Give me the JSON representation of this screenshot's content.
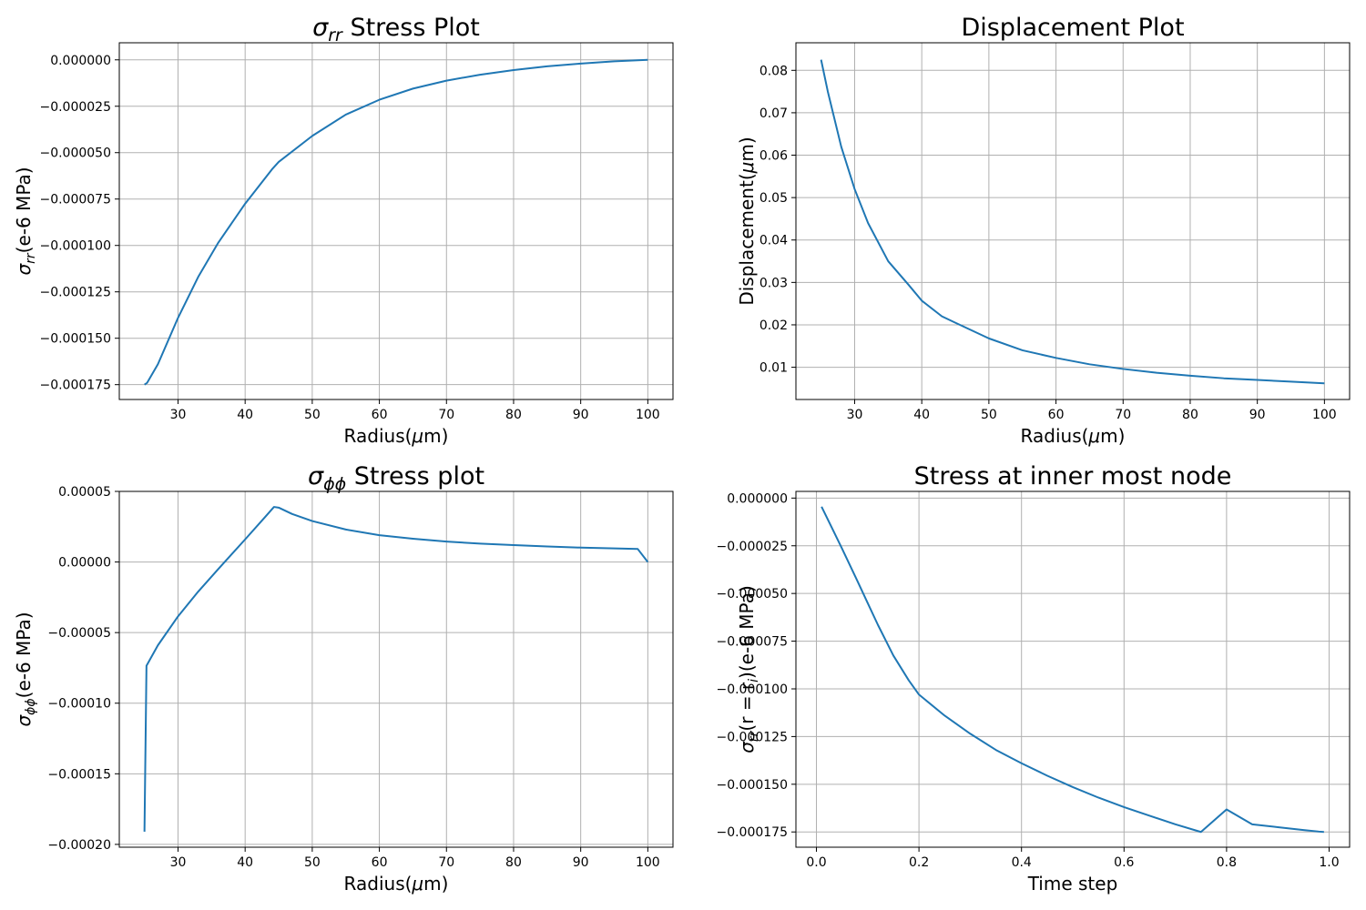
{
  "chart_data": [
    {
      "type": "line",
      "title": "σrr Stress Plot",
      "title_parts": {
        "sym": "σ",
        "sub": "rr",
        "rest": " Stress Plot"
      },
      "xlabel": "Radius(μm)",
      "xlabel_parts": {
        "pre": "Radius(",
        "sym": "μ",
        "sub": "",
        "post": "m)"
      },
      "ylabel": "σrr(e-6 MPa)",
      "ylabel_parts": {
        "pre": "",
        "sym": "σ",
        "sub": "rr",
        "post": "(e-6 MPa)"
      },
      "xlim": [
        21.25,
        103.75
      ],
      "ylim": [
        -0.000183,
        9.2e-06
      ],
      "xticks": [
        30,
        40,
        50,
        60,
        70,
        80,
        90,
        100
      ],
      "xtick_labels": [
        "30",
        "40",
        "50",
        "60",
        "70",
        "80",
        "90",
        "100"
      ],
      "yticks": [
        0,
        -2.5e-05,
        -5e-05,
        -7.5e-05,
        -0.0001,
        -0.000125,
        -0.00015,
        -0.000175
      ],
      "ytick_labels": [
        "0.000000",
        "−0.000025",
        "−0.000050",
        "−0.000075",
        "−0.000100",
        "−0.000125",
        "−0.000150",
        "−0.000175"
      ],
      "grid": true,
      "color": "#1f77b4",
      "x": [
        25,
        25.4,
        27,
        30,
        33,
        36,
        40,
        44,
        45,
        50,
        55,
        60,
        65,
        70,
        75,
        80,
        85,
        90,
        95,
        100
      ],
      "y": [
        -0.000175,
        -0.000174,
        -0.000164,
        -0.000139,
        -0.000117,
        -9.85e-05,
        -7.75e-05,
        -5.9e-05,
        -5.5e-05,
        -4.1e-05,
        -2.95e-05,
        -2.15e-05,
        -1.55e-05,
        -1.12e-05,
        -8e-06,
        -5.5e-06,
        -3.5e-06,
        -2e-06,
        -8e-07,
        0
      ]
    },
    {
      "type": "line",
      "title": "Displacement Plot",
      "title_parts": {
        "sym": "",
        "sub": "",
        "rest": "Displacement Plot"
      },
      "xlabel": "Radius(μm)",
      "xlabel_parts": {
        "pre": "Radius(",
        "sym": "μ",
        "sub": "",
        "post": "m)"
      },
      "ylabel": "Displacement(μm)",
      "ylabel_parts": {
        "pre": "Displacement(",
        "sym": "μ",
        "sub": "",
        "post": "m)"
      },
      "xlim": [
        21.25,
        103.75
      ],
      "ylim": [
        0.0024,
        0.0865
      ],
      "xticks": [
        30,
        40,
        50,
        60,
        70,
        80,
        90,
        100
      ],
      "xtick_labels": [
        "30",
        "40",
        "50",
        "60",
        "70",
        "80",
        "90",
        "100"
      ],
      "yticks": [
        0.01,
        0.02,
        0.03,
        0.04,
        0.05,
        0.06,
        0.07,
        0.08
      ],
      "ytick_labels": [
        "0.01",
        "0.02",
        "0.03",
        "0.04",
        "0.05",
        "0.06",
        "0.07",
        "0.08"
      ],
      "grid": true,
      "color": "#1f77b4",
      "x": [
        25,
        26,
        28,
        30,
        32,
        35,
        38,
        40,
        43,
        45,
        50,
        55,
        60,
        65,
        70,
        75,
        80,
        85,
        90,
        95,
        100
      ],
      "y": [
        0.0825,
        0.075,
        0.062,
        0.052,
        0.044,
        0.035,
        0.0295,
        0.0257,
        0.022,
        0.0205,
        0.0168,
        0.014,
        0.0122,
        0.0107,
        0.0096,
        0.0087,
        0.008,
        0.0074,
        0.007,
        0.0066,
        0.0062
      ]
    },
    {
      "type": "line",
      "title": "σϕϕ Stress plot",
      "title_parts": {
        "sym": "σ",
        "sub": "ϕϕ",
        "rest": " Stress plot"
      },
      "xlabel": "Radius(μm)",
      "xlabel_parts": {
        "pre": "Radius(",
        "sym": "μ",
        "sub": "",
        "post": "m)"
      },
      "ylabel": "σϕϕ(e-6 MPa)",
      "ylabel_parts": {
        "pre": "",
        "sym": "σ",
        "sub": "ϕϕ",
        "post": "(e-6 MPa)"
      },
      "xlim": [
        21.25,
        103.75
      ],
      "ylim": [
        -0.000202,
        5e-05
      ],
      "xticks": [
        30,
        40,
        50,
        60,
        70,
        80,
        90,
        100
      ],
      "xtick_labels": [
        "30",
        "40",
        "50",
        "60",
        "70",
        "80",
        "90",
        "100"
      ],
      "yticks": [
        5e-05,
        0,
        -5e-05,
        -0.0001,
        -0.00015,
        -0.0002
      ],
      "ytick_labels": [
        "0.00005",
        "0.00000",
        "−0.00005",
        "−0.00010",
        "−0.00015",
        "−0.00020"
      ],
      "grid": true,
      "color": "#1f77b4",
      "x": [
        25,
        25.3,
        27,
        30,
        33,
        36,
        40,
        43,
        44.3,
        45,
        47,
        50,
        55,
        60,
        65,
        70,
        75,
        80,
        85,
        90,
        95,
        98.5,
        100
      ],
      "y": [
        -0.000191,
        -7.35e-05,
        -5.9e-05,
        -3.85e-05,
        -2.1e-05,
        -5e-06,
        1.6e-05,
        3.2e-05,
        3.9e-05,
        3.85e-05,
        3.4e-05,
        2.9e-05,
        2.3e-05,
        1.9e-05,
        1.65e-05,
        1.45e-05,
        1.3e-05,
        1.2e-05,
        1.1e-05,
        1.02e-05,
        9.6e-06,
        9.2e-06,
        0
      ]
    },
    {
      "type": "line",
      "title": "Stress at inner most node",
      "title_parts": {
        "sym": "",
        "sub": "",
        "rest": "Stress at inner most node"
      },
      "xlabel": "Time step",
      "xlabel_parts": {
        "pre": "Time step",
        "sym": "",
        "sub": "",
        "post": ""
      },
      "ylabel": "σrr(r = ri)(e-6 MPa)",
      "ylabel_parts": {
        "pre": "",
        "sym": "σ",
        "sub": "rr",
        "post": "(r = r",
        "sub2": "i",
        "post2": ")(e-6 MPa)"
      },
      "xlim": [
        -0.04,
        1.04
      ],
      "ylim": [
        -0.000183,
        3.5e-06
      ],
      "xticks": [
        0,
        0.2,
        0.4,
        0.6,
        0.8,
        1.0
      ],
      "xtick_labels": [
        "0.0",
        "0.2",
        "0.4",
        "0.6",
        "0.8",
        "1.0"
      ],
      "yticks": [
        0,
        -2.5e-05,
        -5e-05,
        -7.5e-05,
        -0.0001,
        -0.000125,
        -0.00015,
        -0.000175
      ],
      "ytick_labels": [
        "0.000000",
        "−0.000025",
        "−0.000050",
        "−0.000075",
        "−0.000100",
        "−0.000125",
        "−0.000150",
        "−0.000175"
      ],
      "grid": true,
      "color": "#1f77b4",
      "x": [
        0.01,
        0.03,
        0.05,
        0.08,
        0.1,
        0.12,
        0.15,
        0.18,
        0.2,
        0.25,
        0.3,
        0.35,
        0.4,
        0.45,
        0.5,
        0.55,
        0.6,
        0.65,
        0.7,
        0.75,
        0.8,
        0.85,
        0.9,
        0.95,
        0.98,
        0.99
      ],
      "y": [
        -4.5e-06,
        -1.55e-05,
        -2.65e-05,
        -4.35e-05,
        -5.5e-05,
        -6.65e-05,
        -8.25e-05,
        -9.55e-05,
        -0.000103,
        -0.000114,
        -0.0001235,
        -0.000132,
        -0.000139,
        -0.0001455,
        -0.0001515,
        -0.000157,
        -0.000162,
        -0.0001665,
        -0.000171,
        -0.000175,
        -0.0001685,
        -0.000171,
        -0.0001725,
        -0.000174,
        -0.0001748,
        -0.000175
      ]
    }
  ]
}
